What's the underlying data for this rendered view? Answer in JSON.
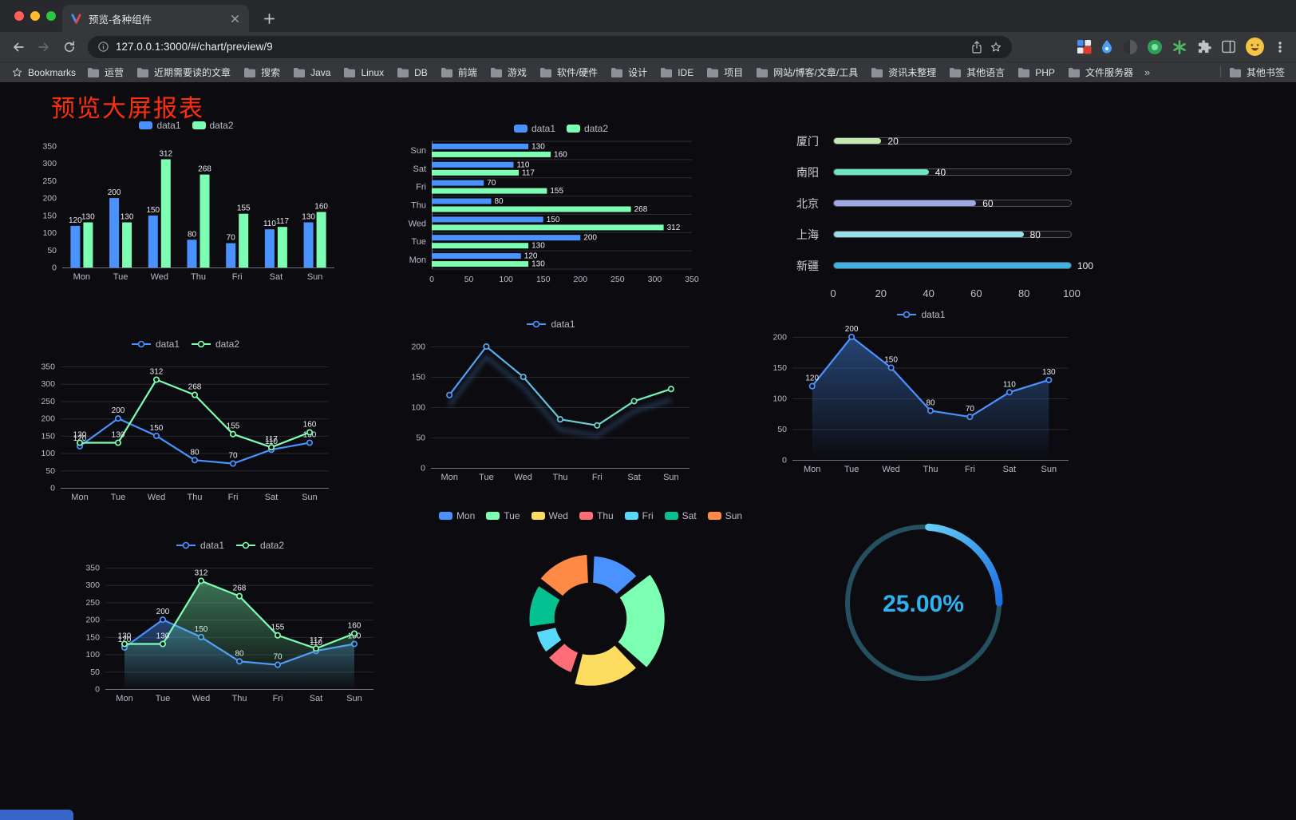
{
  "browser": {
    "tab_title": "预览-各种组件",
    "url": "127.0.0.1:3000/#/chart/preview/9",
    "bookmarks": {
      "label": "Bookmarks",
      "items": [
        "运营",
        "近期需要读的文章",
        "搜索",
        "Java",
        "Linux",
        "DB",
        "前端",
        "游戏",
        "软件/硬件",
        "设计",
        "IDE",
        "项目",
        "网站/博客/文章/工具",
        "资讯未整理",
        "其他语言",
        "PHP",
        "文件服务器"
      ],
      "overflow": "»",
      "other": "其他书签"
    }
  },
  "page": {
    "title": "预览大屏报表",
    "title_color": "#fc2e0e",
    "background": "#0c0c10",
    "status_bar_color": "#3866c8"
  },
  "chart_data": [
    {
      "id": "grouped-bar",
      "type": "bar",
      "categories": [
        "Mon",
        "Tue",
        "Wed",
        "Thu",
        "Fri",
        "Sat",
        "Sun"
      ],
      "series": [
        {
          "name": "data1",
          "color": "#4992ff",
          "values": [
            120,
            200,
            150,
            80,
            70,
            110,
            130
          ]
        },
        {
          "name": "data2",
          "color": "#7cffb2",
          "values": [
            130,
            130,
            312,
            268,
            155,
            117,
            160
          ]
        }
      ],
      "ylim": [
        0,
        350
      ],
      "yticks": [
        0,
        50,
        100,
        150,
        200,
        250,
        300,
        350
      ],
      "value_labels": true,
      "legend_icon": "rect"
    },
    {
      "id": "grouped-bar-horizontal",
      "type": "hbar",
      "categories": [
        "Mon",
        "Tue",
        "Wed",
        "Thu",
        "Fri",
        "Sat",
        "Sun"
      ],
      "series": [
        {
          "name": "data1",
          "color": "#4992ff",
          "values": [
            120,
            200,
            150,
            80,
            70,
            110,
            130
          ]
        },
        {
          "name": "data2",
          "color": "#7cffb2",
          "values": [
            130,
            130,
            312,
            268,
            155,
            117,
            160
          ]
        }
      ],
      "xlim": [
        0,
        350
      ],
      "xticks": [
        0,
        50,
        100,
        150,
        200,
        250,
        300,
        350
      ],
      "value_labels": true,
      "legend_icon": "rect"
    },
    {
      "id": "city-progress",
      "type": "progress",
      "max": 100,
      "xticks": [
        0,
        20,
        40,
        60,
        80,
        100
      ],
      "items": [
        {
          "label": "厦门",
          "value": 20,
          "color": "#c4ebad"
        },
        {
          "label": "南阳",
          "value": 40,
          "color": "#6be6c1"
        },
        {
          "label": "北京",
          "value": 60,
          "color": "#a0a7e6"
        },
        {
          "label": "上海",
          "value": 80,
          "color": "#96dee8"
        },
        {
          "label": "新疆",
          "value": 100,
          "color": "#3fb1e3"
        }
      ]
    },
    {
      "id": "line-two-series",
      "type": "line",
      "categories": [
        "Mon",
        "Tue",
        "Wed",
        "Thu",
        "Fri",
        "Sat",
        "Sun"
      ],
      "series": [
        {
          "name": "data1",
          "color": "#4992ff",
          "values": [
            120,
            200,
            150,
            80,
            70,
            110,
            130
          ]
        },
        {
          "name": "data2",
          "color": "#7cffb2",
          "values": [
            130,
            130,
            312,
            268,
            155,
            117,
            160
          ]
        }
      ],
      "ylim": [
        0,
        350
      ],
      "yticks": [
        0,
        50,
        100,
        150,
        200,
        250,
        300,
        350
      ],
      "value_labels": true,
      "legend_icon": "line"
    },
    {
      "id": "line-gradient",
      "type": "line",
      "categories": [
        "Mon",
        "Tue",
        "Wed",
        "Thu",
        "Fri",
        "Sat",
        "Sun"
      ],
      "series": [
        {
          "name": "data1",
          "color": "#4992ff",
          "values": [
            120,
            200,
            150,
            80,
            70,
            110,
            130
          ]
        }
      ],
      "gradient_to": "#7cffb2",
      "shadow": true,
      "ylim": [
        0,
        200
      ],
      "yticks": [
        0,
        50,
        100,
        150,
        200
      ],
      "value_labels": false,
      "legend_icon": "line"
    },
    {
      "id": "line-area",
      "type": "line",
      "categories": [
        "Mon",
        "Tue",
        "Wed",
        "Thu",
        "Fri",
        "Sat",
        "Sun"
      ],
      "series": [
        {
          "name": "data1",
          "color": "#4992ff",
          "values": [
            120,
            200,
            150,
            80,
            70,
            110,
            130
          ]
        }
      ],
      "area": true,
      "ylim": [
        0,
        200
      ],
      "yticks": [
        0,
        50,
        100,
        150,
        200
      ],
      "value_labels": true,
      "legend_icon": "line"
    },
    {
      "id": "line-area-two-series",
      "type": "line",
      "categories": [
        "Mon",
        "Tue",
        "Wed",
        "Thu",
        "Fri",
        "Sat",
        "Sun"
      ],
      "series": [
        {
          "name": "data1",
          "color": "#4992ff",
          "values": [
            120,
            200,
            150,
            80,
            70,
            110,
            130
          ]
        },
        {
          "name": "data2",
          "color": "#7cffb2",
          "values": [
            130,
            130,
            312,
            268,
            155,
            117,
            160
          ]
        }
      ],
      "area": true,
      "ylim": [
        0,
        350
      ],
      "yticks": [
        0,
        50,
        100,
        150,
        200,
        250,
        300,
        350
      ],
      "value_labels": true,
      "legend_icon": "line"
    },
    {
      "id": "rose-pie",
      "type": "pie",
      "items": [
        {
          "label": "Mon",
          "value": 120,
          "color": "#4992ff"
        },
        {
          "label": "Tue",
          "value": 200,
          "color": "#7cffb2"
        },
        {
          "label": "Wed",
          "value": 150,
          "color": "#fddd60"
        },
        {
          "label": "Thu",
          "value": 80,
          "color": "#ff6e76"
        },
        {
          "label": "Fri",
          "value": 70,
          "color": "#58d9f9"
        },
        {
          "label": "Sat",
          "value": 110,
          "color": "#05c091"
        },
        {
          "label": "Sun",
          "value": 130,
          "color": "#ff8a45"
        }
      ],
      "legend_icon": "rect"
    },
    {
      "id": "ring-progress",
      "type": "ring",
      "value": 25,
      "display": "25.00%",
      "color": "#2eb2f2",
      "track_color": "#24505f",
      "arc_gradient": [
        "#66cff7",
        "#1d6fe0"
      ]
    }
  ]
}
